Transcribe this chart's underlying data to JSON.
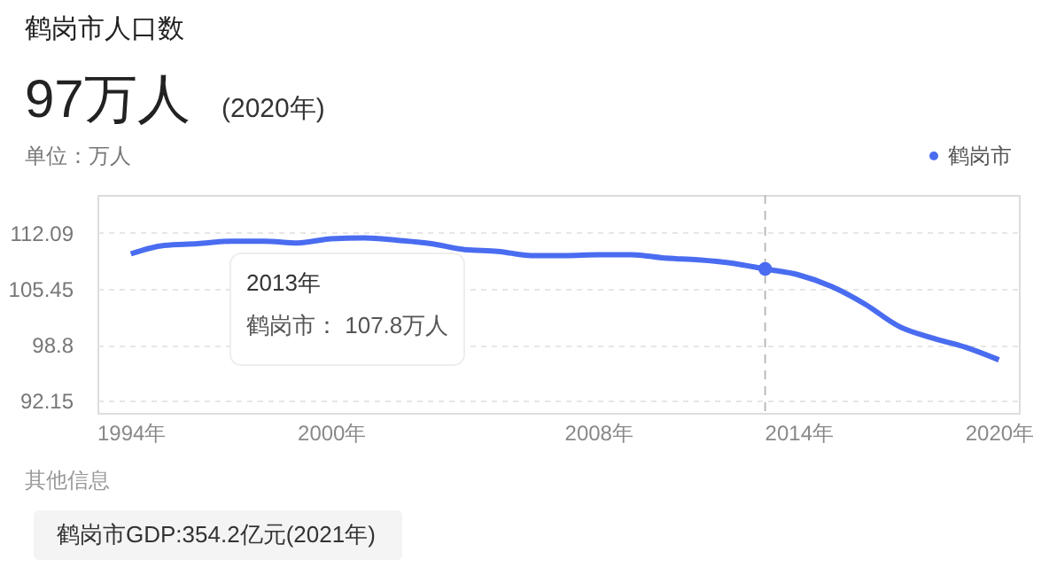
{
  "chart_data": {
    "type": "line",
    "title": "鹤岗市人口数",
    "subtitle": "97万人 (2020年)",
    "ylabel": "单位：万人",
    "x": [
      1994,
      1995,
      1996,
      1997,
      1998,
      1999,
      2000,
      2001,
      2002,
      2003,
      2004,
      2005,
      2006,
      2007,
      2008,
      2009,
      2010,
      2011,
      2012,
      2013,
      2014,
      2015,
      2016,
      2017,
      2018,
      2019,
      2020
    ],
    "series": [
      {
        "name": "鹤岗市",
        "color": "#4a6cf0",
        "values": [
          109.6,
          110.6,
          110.8,
          111.1,
          111.1,
          110.9,
          111.4,
          111.5,
          111.2,
          110.8,
          110.1,
          109.9,
          109.4,
          109.4,
          109.5,
          109.5,
          109.1,
          108.9,
          108.5,
          107.8,
          107.1,
          105.7,
          103.6,
          101.0,
          99.6,
          98.5,
          97.0
        ]
      }
    ],
    "xlim": [
      1993,
      2020.6
    ],
    "xticks": [
      {
        "value": 1994,
        "label": "1994年"
      },
      {
        "value": 2000,
        "label": "2000年"
      },
      {
        "value": 2008,
        "label": "2008年"
      },
      {
        "value": 2014,
        "label": "2014年"
      },
      {
        "value": 2020,
        "label": "2020年"
      }
    ],
    "ylim": [
      90.7,
      116.6
    ],
    "yticks": [
      92.15,
      98.8,
      105.45,
      112.09
    ],
    "grid": "y",
    "legend": "top right",
    "marker": "none",
    "line_style": "solid",
    "ref_lines": [
      {
        "axis": "x",
        "value": 2013,
        "color": "#bbbbbb",
        "line_style": "dashed"
      }
    ],
    "annotations": [
      "2013年",
      "鹤岗市： 107.8万人",
      "其他信息",
      "鹤岗市GDP:354.2亿元(2021年)"
    ]
  }
}
